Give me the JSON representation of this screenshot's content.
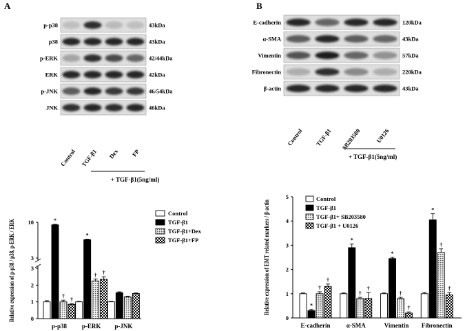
{
  "panels": {
    "A": {
      "letter": "A",
      "blot_rows": [
        {
          "label": "p-p38",
          "size": "43kDa",
          "bands": [
            0.05,
            0.85,
            0.08,
            0.05
          ]
        },
        {
          "label": "p38",
          "size": "43kDa",
          "bands": [
            0.9,
            0.9,
            0.9,
            0.9
          ]
        },
        {
          "label": "p-ERK",
          "size": "42/44kDa",
          "bands": [
            0.2,
            0.85,
            0.7,
            0.55
          ]
        },
        {
          "label": "ERK",
          "size": "42kDa",
          "bands": [
            0.9,
            0.9,
            0.9,
            0.9
          ]
        },
        {
          "label": "p-JNK",
          "size": "46/54kDa",
          "bands": [
            0.6,
            0.9,
            0.8,
            0.8
          ]
        },
        {
          "label": "JNK",
          "size": "46kDa",
          "bands": [
            0.85,
            0.9,
            0.85,
            0.9
          ]
        }
      ],
      "lanes": [
        "Control",
        "TGF-β1",
        "Dex",
        "FP"
      ],
      "treatment_label": "+ TGF-β1(5ng/ml)"
    },
    "B": {
      "letter": "B",
      "blot_rows": [
        {
          "label": "E-cadherin",
          "size": "120kDa",
          "bands": [
            0.9,
            0.55,
            0.9,
            0.9
          ]
        },
        {
          "label": "α-SMA",
          "size": "43kDa",
          "bands": [
            0.6,
            0.9,
            0.6,
            0.55
          ]
        },
        {
          "label": "Vimentin",
          "size": "57kDa",
          "bands": [
            0.65,
            0.95,
            0.55,
            0.3
          ]
        },
        {
          "label": "Fibronectin",
          "size": "220kDa",
          "bands": [
            0.15,
            0.85,
            0.35,
            0.15
          ]
        },
        {
          "label": "β-actin",
          "size": "43kDa",
          "bands": [
            0.9,
            0.9,
            0.9,
            0.9
          ]
        }
      ],
      "lanes": [
        "Control",
        "TGF-β1",
        "SB203580",
        "U0126"
      ],
      "treatment_label": "+ TGF-β1(5ng/ml)"
    }
  },
  "colors": {
    "control": "#ffffff",
    "tgf": "#000000",
    "treat1": "#bfbfbf",
    "treat2": "#e0e0e0"
  },
  "chart_data": [
    {
      "type": "bar",
      "categories": [
        "p-p38",
        "p-ERK",
        "p-JNK"
      ],
      "ylabel": "Relative expression of p-p38 / p38, p-ERK / ERK",
      "xlabel": "",
      "axis_break": {
        "lower": [
          0,
          3
        ],
        "upper": [
          3,
          10
        ]
      },
      "lower_ticks": [
        0,
        1,
        2,
        3
      ],
      "upper_ticks": [
        3,
        10
      ],
      "series": [
        {
          "name": "Control",
          "values": [
            1.0,
            1.0,
            1.0
          ],
          "errors": [
            0.07,
            0.03,
            0.03
          ],
          "marks": [
            "",
            "",
            ""
          ]
        },
        {
          "name": "TGF-β1",
          "values": [
            9.5,
            6.6,
            1.55
          ],
          "errors": [
            0.1,
            0.1,
            0.05
          ],
          "marks": [
            "*",
            "*",
            ""
          ]
        },
        {
          "name": "TGF-β1+Dex",
          "values": [
            1.0,
            2.25,
            1.3
          ],
          "errors": [
            0.1,
            0.12,
            0.04
          ],
          "marks": [
            "†",
            "†",
            ""
          ]
        },
        {
          "name": "TGF-β1+FP",
          "values": [
            0.85,
            2.35,
            1.5
          ],
          "errors": [
            0.05,
            0.15,
            0.03
          ],
          "marks": [
            "†",
            "†",
            ""
          ]
        }
      ],
      "legend_position": "top-right"
    },
    {
      "type": "bar",
      "categories": [
        "E-cadherin",
        "α-SMA",
        "Vimentin",
        "Fibronectin"
      ],
      "ylabel": "Relative expression of EMT related markers / β-actin",
      "xlabel": "",
      "ylim": [
        0,
        5
      ],
      "ticks": [
        0,
        1,
        2,
        3,
        4,
        5
      ],
      "series": [
        {
          "name": "Control",
          "values": [
            1.0,
            1.0,
            1.0,
            1.0
          ],
          "errors": [
            0.03,
            0.03,
            0.03,
            0.05
          ],
          "marks": [
            "",
            "",
            "",
            ""
          ]
        },
        {
          "name": "TGF-β1",
          "values": [
            0.3,
            2.9,
            2.45,
            4.05
          ],
          "errors": [
            0.05,
            0.15,
            0.05,
            0.25
          ],
          "marks": [
            "*",
            "*",
            "*",
            "*"
          ]
        },
        {
          "name": "TGF-β1+  SB203580",
          "values": [
            1.0,
            0.8,
            0.8,
            2.7
          ],
          "errors": [
            0.08,
            0.05,
            0.05,
            0.15
          ],
          "marks": [
            "†",
            "†",
            "†",
            "†"
          ]
        },
        {
          "name": "TGF-β1  + U0126",
          "values": [
            1.3,
            0.8,
            0.2,
            0.95
          ],
          "errors": [
            0.1,
            0.25,
            0.05,
            0.1
          ],
          "marks": [
            "†",
            "†",
            "†",
            "†"
          ]
        }
      ],
      "legend_position": "top-left"
    }
  ]
}
